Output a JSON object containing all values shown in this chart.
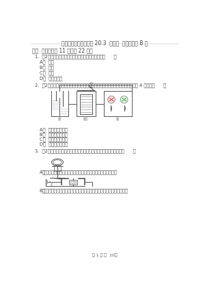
{
  "title": "初中物理九年级上学期 20.3  电磁铁  电磁继电器 B 卷",
  "section": "一、  单选题（共 11 题；共 22 分）",
  "q1_text": "1.  （2分）下列用电器中，不属于电磁铁的应用的是（      ）",
  "q1_a": "A．  电话",
  "q1_b": "B．  电炉",
  "q1_c": "C．  电铃",
  "q1_d": "D．  电磁起重机",
  "q2_text": "2.  （2分）如图所示是一种水位自动调整器的原理示意图，当水位升高到金属触点 4 接触时（      ）",
  "q2_a": "A．  红灯亮，绿灯灭",
  "q2_b": "B．  红灯灭，绿灯亮",
  "q2_c": "C．  红灯亮，绿灯亮",
  "q2_d": "D．  红灯灭，绿灯灭",
  "q3_text": "3.  （2分）如图是研究电磁现象的四个实验装置，相关说法正确的是（      ）",
  "q3_a_label": "A．",
  "q3_a_text": "图像证明通电导体周围有磁场，这个现象是法拉第首先发现的",
  "q3_b_label": "B．",
  "q3_b_text": "图中开关闭合，磁场中的导体将会受力运动，这过程机械能转化为电能",
  "footer": "第 1 页 共  10页",
  "bg_color": "#ffffff",
  "text_color": "#444444",
  "font_size_title": 5.5,
  "font_size_section": 5.5,
  "font_size_body": 4.8,
  "font_size_small": 3.5,
  "font_size_footer": 4.5
}
